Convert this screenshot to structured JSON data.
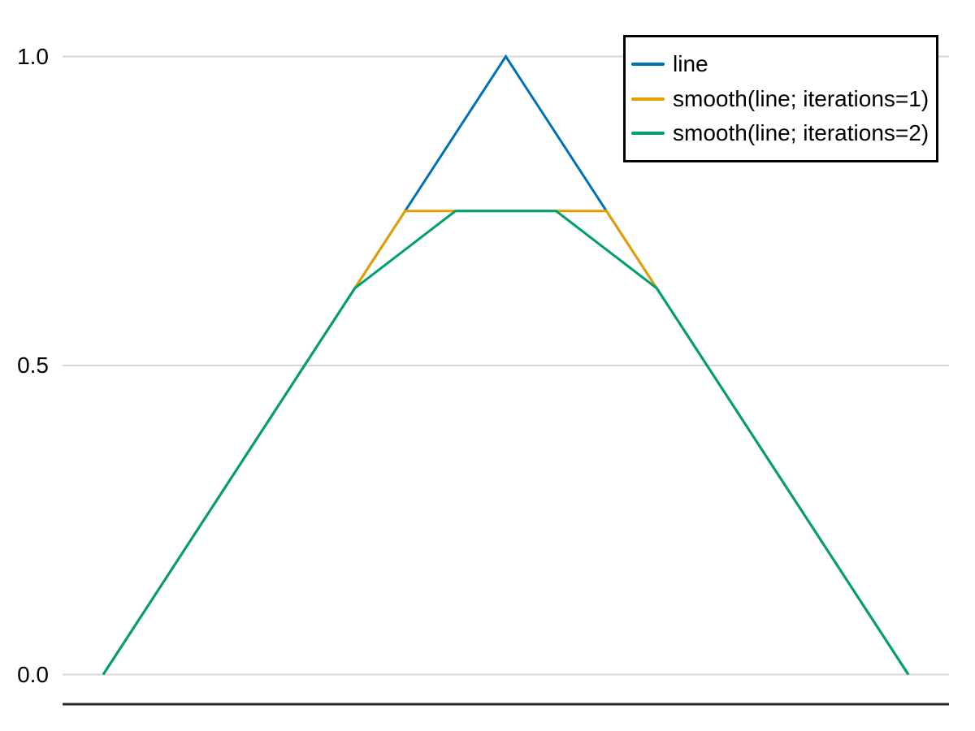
{
  "chart_data": {
    "type": "line",
    "title": "",
    "background": "#FFFFFF",
    "x_axis": {
      "label": "",
      "range": [
        0,
        1
      ],
      "ticks": [],
      "spine_color": "#262626"
    },
    "y_axis": {
      "label": "",
      "range": [
        -0.05,
        1.05
      ],
      "ticks": [
        {
          "value": 1.0,
          "label": "1.0"
        },
        {
          "value": 0.5,
          "label": "0.5"
        },
        {
          "value": 0.0,
          "label": "0.0"
        }
      ]
    },
    "grid": {
      "horizontal": true,
      "vertical": false,
      "color": "#D7D7D7"
    },
    "legend": {
      "position": "top-right",
      "border_color": "#000000",
      "background": "#FFFFFF"
    },
    "series": [
      {
        "name": "line",
        "color": "#0072B2",
        "points": [
          [
            0,
            0
          ],
          [
            0.5,
            1.0
          ],
          [
            1,
            0
          ]
        ]
      },
      {
        "name": "smooth(line; iterations=1)",
        "color": "#E69F00",
        "points": [
          [
            0,
            0
          ],
          [
            0.375,
            0.75
          ],
          [
            0.625,
            0.75
          ],
          [
            1,
            0
          ]
        ]
      },
      {
        "name": "smooth(line; iterations=2)",
        "color": "#009E73",
        "points": [
          [
            0,
            0
          ],
          [
            0.3125,
            0.625
          ],
          [
            0.4375,
            0.75
          ],
          [
            0.5625,
            0.75
          ],
          [
            0.6875,
            0.625
          ],
          [
            1,
            0
          ]
        ]
      }
    ]
  }
}
